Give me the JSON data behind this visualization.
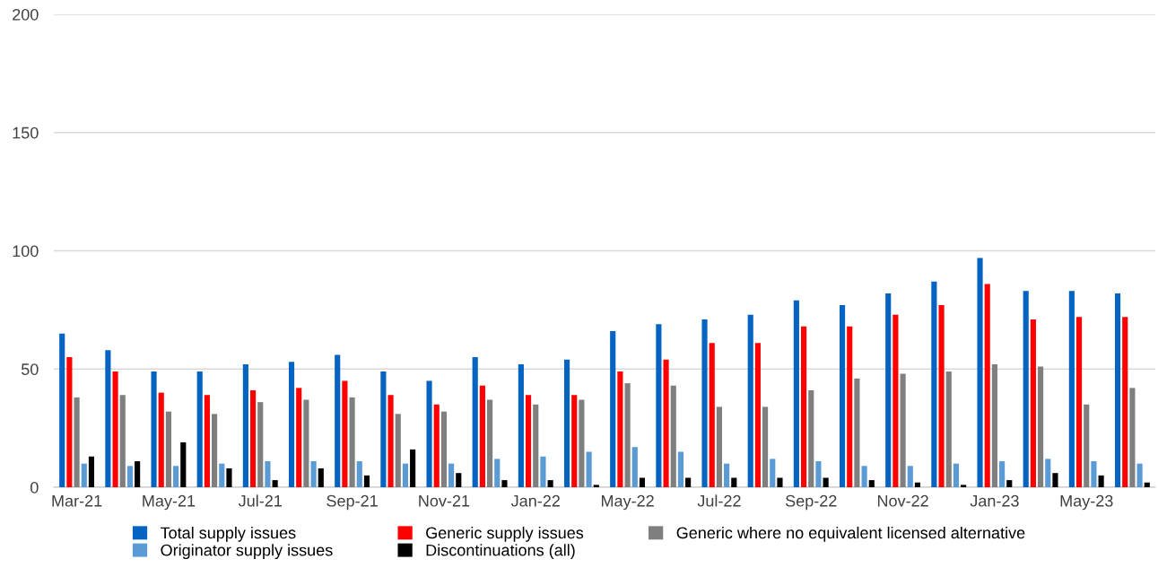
{
  "chart_data": {
    "type": "bar",
    "categories": [
      "Mar-21",
      null,
      "May-21",
      null,
      "Jul-21",
      null,
      "Sep-21",
      null,
      "Nov-21",
      null,
      "Jan-22",
      null,
      "May-22",
      null,
      "Jul-22",
      null,
      "Sep-22",
      null,
      "Nov-22",
      null,
      "Jan-23",
      null,
      "May-23",
      null
    ],
    "series": [
      {
        "name": "Total supply issues",
        "color": "#0563c1",
        "values": [
          65,
          58,
          49,
          49,
          52,
          53,
          56,
          49,
          45,
          55,
          52,
          54,
          66,
          69,
          71,
          73,
          79,
          77,
          82,
          87,
          97,
          83,
          83,
          82
        ]
      },
      {
        "name": "Generic supply issues",
        "color": "#ff0000",
        "values": [
          55,
          49,
          40,
          39,
          41,
          42,
          45,
          39,
          35,
          43,
          39,
          39,
          49,
          54,
          61,
          61,
          68,
          68,
          73,
          77,
          86,
          71,
          72,
          72
        ]
      },
      {
        "name": "Generic where no equivalent licensed alternative",
        "color": "#7f7f7f",
        "values": [
          38,
          39,
          32,
          31,
          36,
          37,
          38,
          31,
          32,
          37,
          35,
          37,
          44,
          43,
          34,
          34,
          41,
          46,
          48,
          49,
          52,
          51,
          35,
          42
        ]
      },
      {
        "name": "Originator supply issues",
        "color": "#5b9bd5",
        "values": [
          10,
          9,
          9,
          10,
          11,
          11,
          11,
          10,
          10,
          12,
          13,
          15,
          17,
          15,
          10,
          12,
          11,
          9,
          9,
          10,
          11,
          12,
          11,
          10
        ]
      },
      {
        "name": "Discontinuations (all)",
        "color": "#000000",
        "values": [
          13,
          11,
          19,
          8,
          3,
          8,
          5,
          16,
          6,
          3,
          3,
          1,
          4,
          4,
          4,
          4,
          4,
          3,
          2,
          1,
          3,
          6,
          5,
          2
        ]
      }
    ],
    "ylim": [
      0,
      200
    ],
    "yticks": [
      0,
      50,
      100,
      150,
      200
    ],
    "grid": "y",
    "legend": "bottom"
  }
}
